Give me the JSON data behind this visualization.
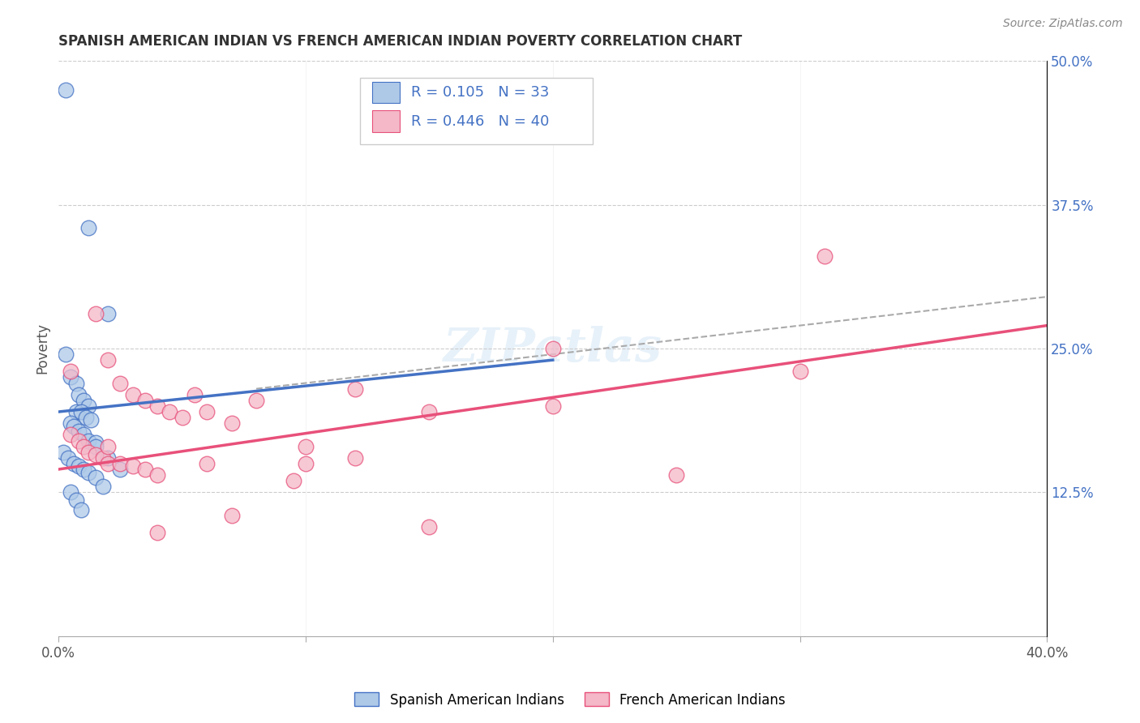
{
  "title": "SPANISH AMERICAN INDIAN VS FRENCH AMERICAN INDIAN POVERTY CORRELATION CHART",
  "source": "Source: ZipAtlas.com",
  "ylabel": "Poverty",
  "xlim": [
    0.0,
    0.4
  ],
  "ylim": [
    0.0,
    0.5
  ],
  "xtick_labels": [
    "0.0%",
    "",
    "",
    "",
    "40.0%"
  ],
  "xtick_values": [
    0.0,
    0.1,
    0.2,
    0.3,
    0.4
  ],
  "ytick_labels_right": [
    "12.5%",
    "25.0%",
    "37.5%",
    "50.0%"
  ],
  "ytick_values_right": [
    0.125,
    0.25,
    0.375,
    0.5
  ],
  "blue_color": "#aec9e8",
  "pink_color": "#f4b8c8",
  "blue_edge_color": "#4472c4",
  "pink_edge_color": "#e8507a",
  "blue_line_color": "#4472c4",
  "pink_line_color": "#e8507a",
  "dash_line_color": "#aaaaaa",
  "blue_R": 0.105,
  "blue_N": 33,
  "pink_R": 0.446,
  "pink_N": 40,
  "legend_label_blue": "Spanish American Indians",
  "legend_label_pink": "French American Indians",
  "blue_line_x": [
    0.0,
    0.2
  ],
  "blue_line_y": [
    0.195,
    0.24
  ],
  "pink_line_x": [
    0.0,
    0.4
  ],
  "pink_line_y": [
    0.145,
    0.27
  ],
  "dash_line_x": [
    0.08,
    0.4
  ],
  "dash_line_y": [
    0.215,
    0.295
  ],
  "blue_scatter_x": [
    0.003,
    0.012,
    0.02,
    0.003,
    0.005,
    0.007,
    0.008,
    0.01,
    0.012,
    0.007,
    0.009,
    0.011,
    0.013,
    0.005,
    0.006,
    0.008,
    0.01,
    0.012,
    0.015,
    0.015,
    0.02,
    0.002,
    0.004,
    0.006,
    0.008,
    0.01,
    0.012,
    0.015,
    0.018,
    0.025,
    0.005,
    0.007,
    0.009
  ],
  "blue_scatter_y": [
    0.475,
    0.355,
    0.28,
    0.245,
    0.225,
    0.22,
    0.21,
    0.205,
    0.2,
    0.195,
    0.195,
    0.19,
    0.188,
    0.185,
    0.182,
    0.178,
    0.175,
    0.17,
    0.168,
    0.165,
    0.155,
    0.16,
    0.155,
    0.15,
    0.148,
    0.145,
    0.142,
    0.138,
    0.13,
    0.145,
    0.125,
    0.118,
    0.11
  ],
  "pink_scatter_x": [
    0.005,
    0.015,
    0.02,
    0.025,
    0.03,
    0.035,
    0.04,
    0.045,
    0.05,
    0.055,
    0.06,
    0.07,
    0.08,
    0.1,
    0.12,
    0.15,
    0.2,
    0.25,
    0.3,
    0.31,
    0.005,
    0.008,
    0.01,
    0.012,
    0.015,
    0.018,
    0.02,
    0.025,
    0.03,
    0.035,
    0.04,
    0.02,
    0.06,
    0.095,
    0.1,
    0.12,
    0.15,
    0.2,
    0.07,
    0.04
  ],
  "pink_scatter_y": [
    0.23,
    0.28,
    0.24,
    0.22,
    0.21,
    0.205,
    0.2,
    0.195,
    0.19,
    0.21,
    0.195,
    0.185,
    0.205,
    0.165,
    0.215,
    0.195,
    0.2,
    0.14,
    0.23,
    0.33,
    0.175,
    0.17,
    0.165,
    0.16,
    0.158,
    0.155,
    0.15,
    0.15,
    0.148,
    0.145,
    0.14,
    0.165,
    0.15,
    0.135,
    0.15,
    0.155,
    0.095,
    0.25,
    0.105,
    0.09
  ],
  "background_color": "#ffffff",
  "grid_color": "#cccccc"
}
